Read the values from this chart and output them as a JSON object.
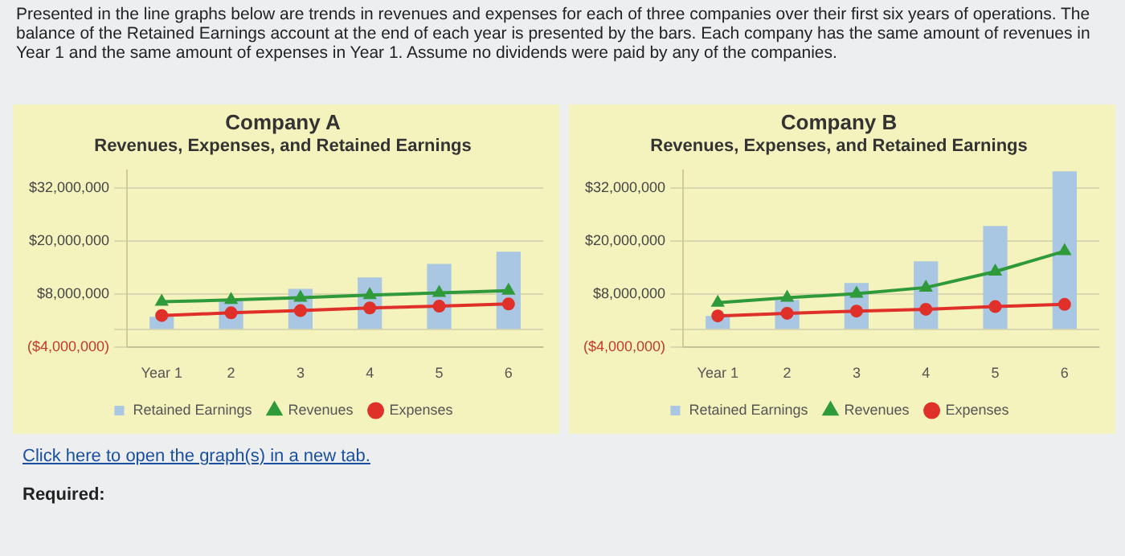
{
  "chart_data": [
    {
      "type": "bar",
      "title": "Company A",
      "subtitle": "Revenues, Expenses, and Retained Earnings",
      "categories": [
        "Year 1",
        "2",
        "3",
        "4",
        "5",
        "6"
      ],
      "series": [
        {
          "name": "Retained Earnings",
          "color": "#a9c6e2",
          "values": [
            2900000,
            6400000,
            9200000,
            11800000,
            14800000,
            17600000
          ]
        },
        {
          "name": "Revenues",
          "type": "line",
          "color": "#2e9a3a",
          "marker": "triangle",
          "values": [
            6300000,
            6700000,
            7200000,
            7800000,
            8300000,
            8800000
          ]
        },
        {
          "name": "Expenses",
          "type": "line",
          "color": "#e0302a",
          "marker": "circle",
          "values": [
            3200000,
            3800000,
            4300000,
            4900000,
            5300000,
            5800000
          ]
        }
      ],
      "ylim": [
        -4000000,
        36000000
      ],
      "yticks": [
        {
          "value": -4000000,
          "label": "($4,000,000)"
        },
        {
          "value": 0,
          "label": null
        },
        {
          "value": 8000000,
          "label": "$8,000,000"
        },
        {
          "value": 20000000,
          "label": "$20,000,000"
        },
        {
          "value": 32000000,
          "label": "$32,000,000"
        }
      ],
      "grid": "y",
      "legend": "bottom",
      "annotations": [
        "Presented in the line graphs below are trends in revenues and expenses for each of three companies over their first six years of operations. The balance of the Retained Earnings account at the end of each year is presented by the bars. Each company has the same amount of revenues in Year 1 and the same amount of expenses in Year 1. Assume no dividends were paid by any of the companies.",
        "Click here to open the graph(s) in a new tab.",
        "Required:"
      ]
    },
    {
      "type": "bar",
      "title": "Company B",
      "subtitle": "Revenues, Expenses, and Retained Earnings",
      "categories": [
        "Year 1",
        "2",
        "3",
        "4",
        "5",
        "6"
      ],
      "series": [
        {
          "name": "Retained Earnings",
          "color": "#a9c6e2",
          "values": [
            3100000,
            6700000,
            10500000,
            15400000,
            23400000,
            35700000
          ]
        },
        {
          "name": "Revenues",
          "type": "line",
          "color": "#2e9a3a",
          "marker": "triangle",
          "values": [
            6100000,
            7200000,
            8100000,
            9500000,
            13100000,
            17700000
          ]
        },
        {
          "name": "Expenses",
          "type": "line",
          "color": "#e0302a",
          "marker": "circle",
          "values": [
            3100000,
            3700000,
            4200000,
            4600000,
            5200000,
            5700000
          ]
        }
      ],
      "ylim": [
        -4000000,
        36000000
      ],
      "yticks": [
        {
          "value": -4000000,
          "label": "($4,000,000)"
        },
        {
          "value": 0,
          "label": null
        },
        {
          "value": 8000000,
          "label": "$8,000,000"
        },
        {
          "value": 20000000,
          "label": "$20,000,000"
        },
        {
          "value": 32000000,
          "label": "$32,000,000"
        }
      ],
      "grid": "y",
      "legend": "bottom"
    }
  ]
}
